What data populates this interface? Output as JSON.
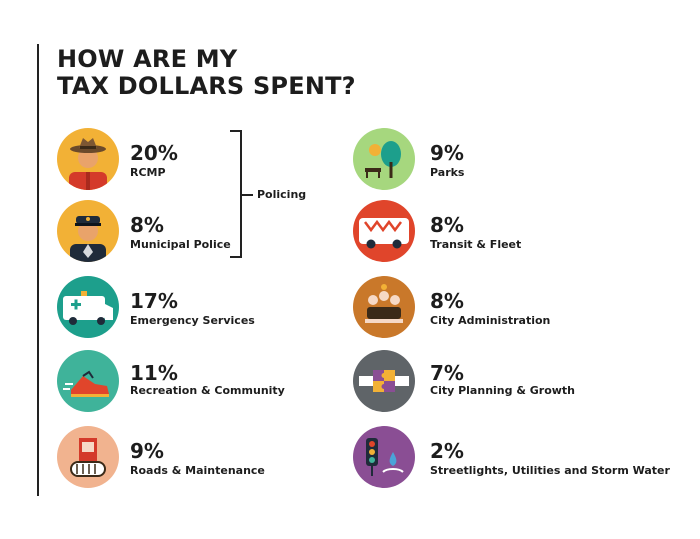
{
  "title": {
    "line1": "HOW ARE MY",
    "line2": "TAX DOLLARS SPENT?"
  },
  "group": {
    "policing_label": "Policing"
  },
  "chart_data": {
    "type": "table",
    "title": "HOW ARE MY TAX DOLLARS SPENT?",
    "unit": "%",
    "items": [
      {
        "label": "RCMP",
        "value": 20,
        "display": "20%",
        "group": "Policing",
        "icon": "rcmp-officer-icon",
        "color": "#f2b136"
      },
      {
        "label": "Municipal Police",
        "value": 8,
        "display": "8%",
        "group": "Policing",
        "icon": "police-officer-icon",
        "color": "#f2b136"
      },
      {
        "label": "Emergency Services",
        "value": 17,
        "display": "17%",
        "icon": "ambulance-icon",
        "color": "#1d9f8c"
      },
      {
        "label": "Recreation  & Community",
        "value": 11,
        "display": "11%",
        "icon": "running-shoe-icon",
        "color": "#3fb39a"
      },
      {
        "label": "Roads & Maintenance",
        "value": 9,
        "display": "9%",
        "icon": "road-roller-icon",
        "color": "#f1b38f"
      },
      {
        "label": "Parks",
        "value": 9,
        "display": "9%",
        "icon": "park-tree-icon",
        "color": "#a6d77e"
      },
      {
        "label": "Transit & Fleet",
        "value": 8,
        "display": "8%",
        "icon": "bus-icon",
        "color": "#e0452b"
      },
      {
        "label": "City Administration",
        "value": 8,
        "display": "8%",
        "icon": "meeting-people-icon",
        "color": "#c9782a"
      },
      {
        "label": "City Planning & Growth",
        "value": 7,
        "display": "7%",
        "icon": "puzzle-handshake-icon",
        "color": "#5f6468"
      },
      {
        "label": "Streetlights, Utilities and Storm Water",
        "value": 2,
        "display": "2%",
        "icon": "traffic-light-icon",
        "color": "#8a4e94"
      }
    ]
  }
}
